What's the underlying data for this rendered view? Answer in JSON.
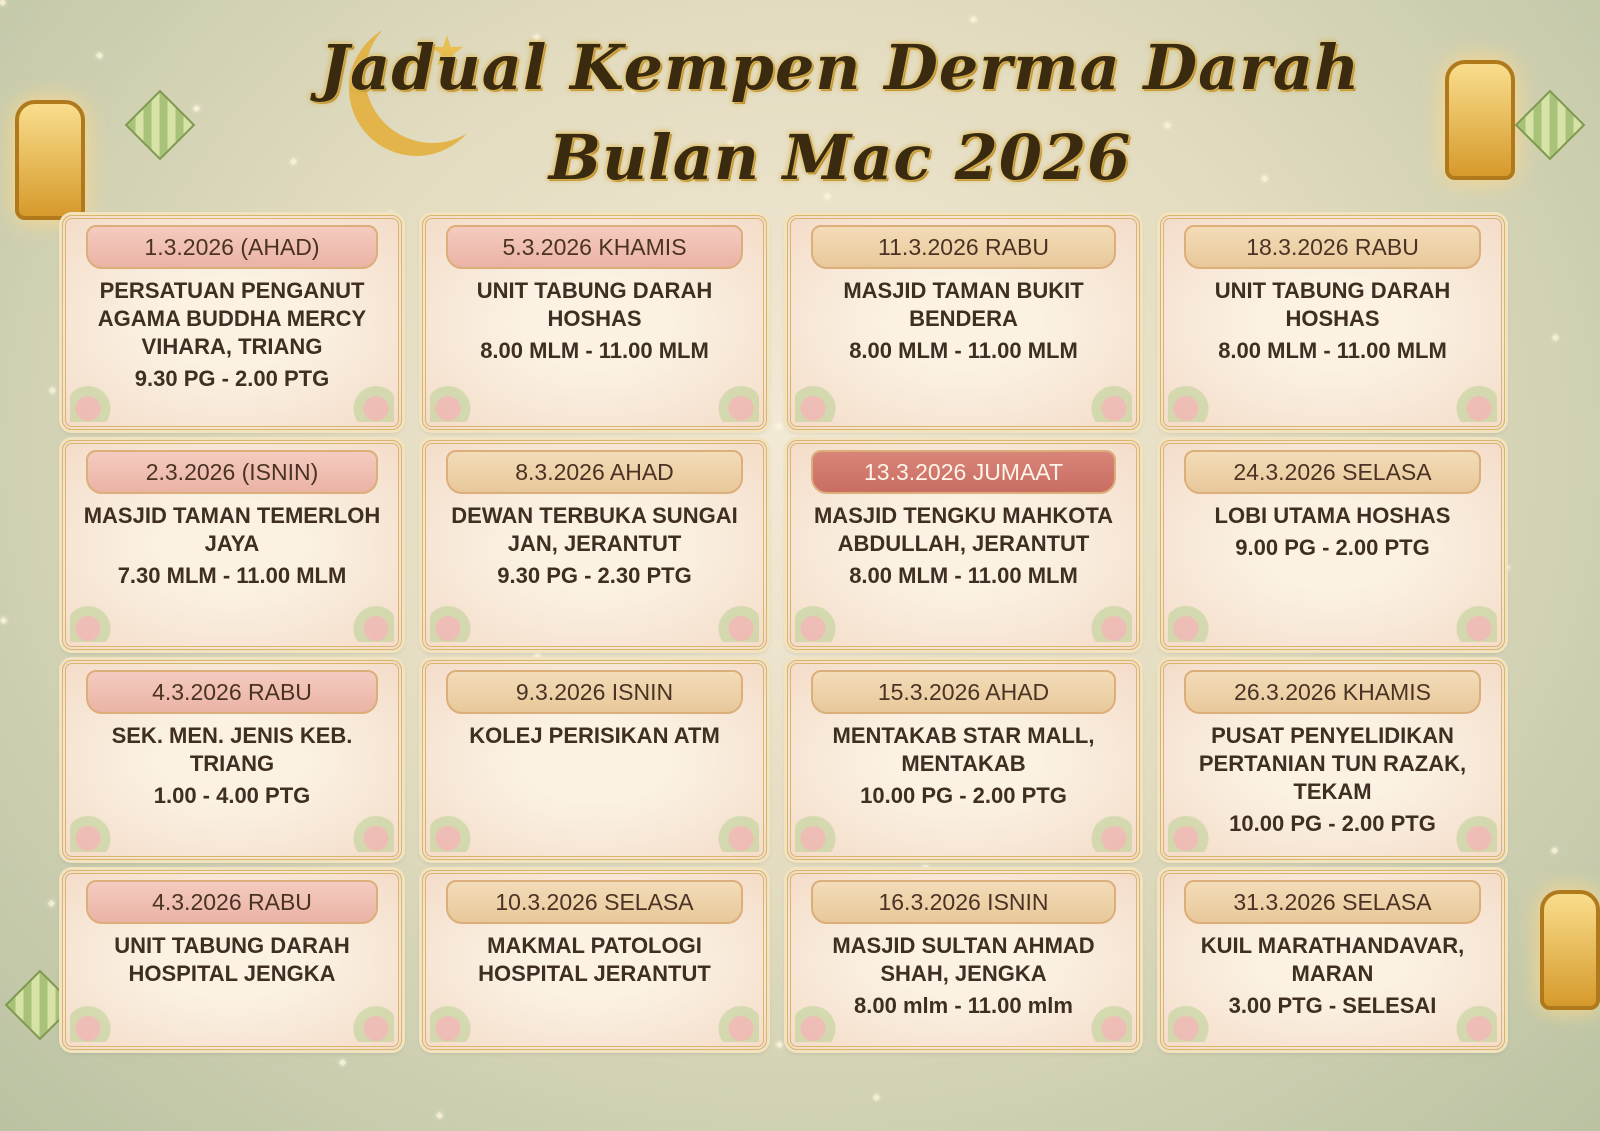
{
  "title": {
    "line1": "Jadual Kempen Derma Darah",
    "line2": "Bulan Mac 2026"
  },
  "cards": [
    {
      "date": "1.3.2026 (AHAD)",
      "venue": "PERSATUAN PENGANUT AGAMA BUDDHA MERCY VIHARA, TRIANG",
      "time": "9.30 PG - 2.00 PTG",
      "style": "pink"
    },
    {
      "date": "5.3.2026 KHAMIS",
      "venue": "UNIT TABUNG DARAH HOSHAS",
      "time": "8.00 MLM - 11.00 MLM",
      "style": "pink"
    },
    {
      "date": "11.3.2026 RABU",
      "venue": "MASJID TAMAN BUKIT BENDERA",
      "time": "8.00 MLM - 11.00 MLM",
      "style": "gold"
    },
    {
      "date": "18.3.2026 RABU",
      "venue": "UNIT TABUNG DARAH HOSHAS",
      "time": "8.00 MLM - 11.00 MLM",
      "style": "gold"
    },
    {
      "date": "2.3.2026 (ISNIN)",
      "venue": "MASJID TAMAN TEMERLOH JAYA",
      "time": "7.30 MLM - 11.00 MLM",
      "style": "pink"
    },
    {
      "date": "8.3.2026 AHAD",
      "venue": "DEWAN TERBUKA SUNGAI JAN, JERANTUT",
      "time": "9.30 PG - 2.30 PTG",
      "style": "gold"
    },
    {
      "date": "13.3.2026 JUMAAT",
      "venue": "MASJID TENGKU MAHKOTA ABDULLAH, JERANTUT",
      "time": "8.00 MLM - 11.00 MLM",
      "style": "red"
    },
    {
      "date": "24.3.2026 SELASA",
      "venue": "LOBI UTAMA HOSHAS",
      "time": "9.00 PG - 2.00 PTG",
      "style": "gold"
    },
    {
      "date": "4.3.2026 RABU",
      "venue": "SEK. MEN. JENIS KEB. TRIANG",
      "time": "1.00 - 4.00 PTG",
      "style": "pink"
    },
    {
      "date": "9.3.2026 ISNIN",
      "venue": "KOLEJ PERISIKAN ATM",
      "time": "",
      "style": "gold"
    },
    {
      "date": "15.3.2026 AHAD",
      "venue": "MENTAKAB STAR MALL, MENTAKAB",
      "time": "10.00 PG - 2.00 PTG",
      "style": "gold"
    },
    {
      "date": "26.3.2026 KHAMIS",
      "venue": "PUSAT PENYELIDIKAN PERTANIAN TUN RAZAK, TEKAM",
      "time": "10.00 PG - 2.00 PTG",
      "style": "gold"
    },
    {
      "date": "4.3.2026 RABU",
      "venue": "UNIT TABUNG DARAH HOSPITAL JENGKA",
      "time": "",
      "style": "pink"
    },
    {
      "date": "10.3.2026 SELASA",
      "venue": "MAKMAL PATOLOGI HOSPITAL JERANTUT",
      "time": "",
      "style": "gold"
    },
    {
      "date": "16.3.2026 ISNIN",
      "venue": "MASJID SULTAN AHMAD SHAH, JENGKA",
      "time": "8.00 mlm - 11.00 mlm",
      "style": "gold"
    },
    {
      "date": "31.3.2026 SELASA",
      "venue": "KUIL MARATHANDAVAR, MARAN",
      "time": "3.00 PTG - SELESAI",
      "style": "gold"
    }
  ]
}
